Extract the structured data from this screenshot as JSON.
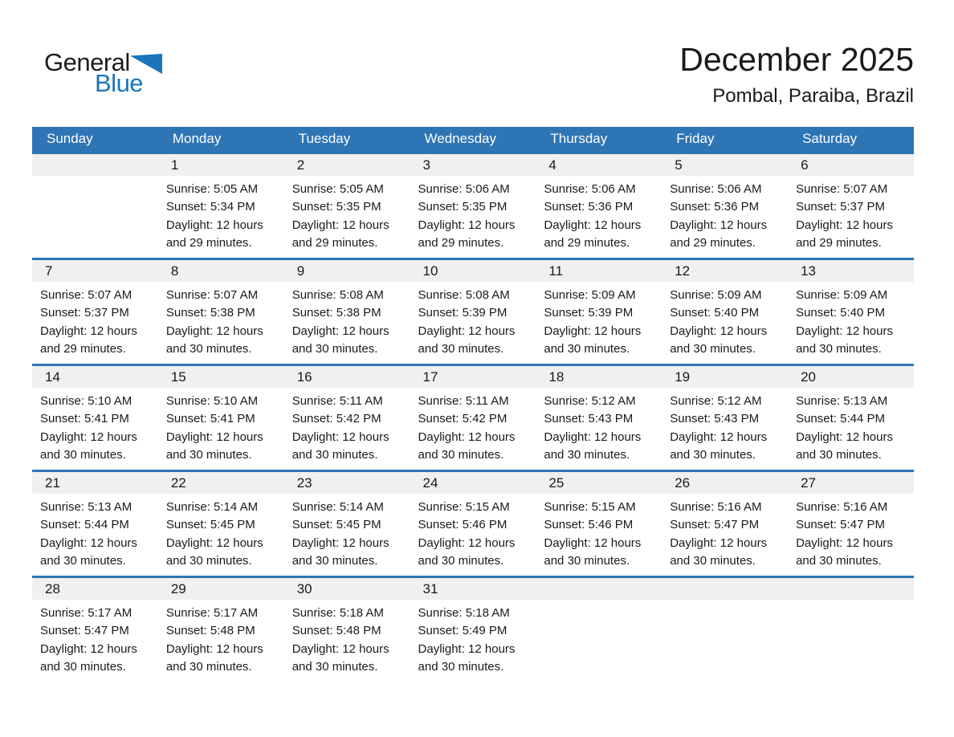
{
  "logo": {
    "general": "General",
    "blue": "Blue"
  },
  "header": {
    "title": "December 2025",
    "subtitle": "Pombal, Paraiba, Brazil"
  },
  "colors": {
    "accent_blue": "#2E75B5",
    "day_number_strip": "#F0F0F0",
    "logo_blue": "#1B75BC",
    "header_text": "#FFFFFF"
  },
  "weekdays": [
    "Sunday",
    "Monday",
    "Tuesday",
    "Wednesday",
    "Thursday",
    "Friday",
    "Saturday"
  ],
  "weeks": [
    [
      null,
      {
        "day": "1",
        "sunrise": "Sunrise: 5:05 AM",
        "sunset": "Sunset: 5:34 PM",
        "daylight": "Daylight: 12 hours and 29 minutes."
      },
      {
        "day": "2",
        "sunrise": "Sunrise: 5:05 AM",
        "sunset": "Sunset: 5:35 PM",
        "daylight": "Daylight: 12 hours and 29 minutes."
      },
      {
        "day": "3",
        "sunrise": "Sunrise: 5:06 AM",
        "sunset": "Sunset: 5:35 PM",
        "daylight": "Daylight: 12 hours and 29 minutes."
      },
      {
        "day": "4",
        "sunrise": "Sunrise: 5:06 AM",
        "sunset": "Sunset: 5:36 PM",
        "daylight": "Daylight: 12 hours and 29 minutes."
      },
      {
        "day": "5",
        "sunrise": "Sunrise: 5:06 AM",
        "sunset": "Sunset: 5:36 PM",
        "daylight": "Daylight: 12 hours and 29 minutes."
      },
      {
        "day": "6",
        "sunrise": "Sunrise: 5:07 AM",
        "sunset": "Sunset: 5:37 PM",
        "daylight": "Daylight: 12 hours and 29 minutes."
      }
    ],
    [
      {
        "day": "7",
        "sunrise": "Sunrise: 5:07 AM",
        "sunset": "Sunset: 5:37 PM",
        "daylight": "Daylight: 12 hours and 29 minutes."
      },
      {
        "day": "8",
        "sunrise": "Sunrise: 5:07 AM",
        "sunset": "Sunset: 5:38 PM",
        "daylight": "Daylight: 12 hours and 30 minutes."
      },
      {
        "day": "9",
        "sunrise": "Sunrise: 5:08 AM",
        "sunset": "Sunset: 5:38 PM",
        "daylight": "Daylight: 12 hours and 30 minutes."
      },
      {
        "day": "10",
        "sunrise": "Sunrise: 5:08 AM",
        "sunset": "Sunset: 5:39 PM",
        "daylight": "Daylight: 12 hours and 30 minutes."
      },
      {
        "day": "11",
        "sunrise": "Sunrise: 5:09 AM",
        "sunset": "Sunset: 5:39 PM",
        "daylight": "Daylight: 12 hours and 30 minutes."
      },
      {
        "day": "12",
        "sunrise": "Sunrise: 5:09 AM",
        "sunset": "Sunset: 5:40 PM",
        "daylight": "Daylight: 12 hours and 30 minutes."
      },
      {
        "day": "13",
        "sunrise": "Sunrise: 5:09 AM",
        "sunset": "Sunset: 5:40 PM",
        "daylight": "Daylight: 12 hours and 30 minutes."
      }
    ],
    [
      {
        "day": "14",
        "sunrise": "Sunrise: 5:10 AM",
        "sunset": "Sunset: 5:41 PM",
        "daylight": "Daylight: 12 hours and 30 minutes."
      },
      {
        "day": "15",
        "sunrise": "Sunrise: 5:10 AM",
        "sunset": "Sunset: 5:41 PM",
        "daylight": "Daylight: 12 hours and 30 minutes."
      },
      {
        "day": "16",
        "sunrise": "Sunrise: 5:11 AM",
        "sunset": "Sunset: 5:42 PM",
        "daylight": "Daylight: 12 hours and 30 minutes."
      },
      {
        "day": "17",
        "sunrise": "Sunrise: 5:11 AM",
        "sunset": "Sunset: 5:42 PM",
        "daylight": "Daylight: 12 hours and 30 minutes."
      },
      {
        "day": "18",
        "sunrise": "Sunrise: 5:12 AM",
        "sunset": "Sunset: 5:43 PM",
        "daylight": "Daylight: 12 hours and 30 minutes."
      },
      {
        "day": "19",
        "sunrise": "Sunrise: 5:12 AM",
        "sunset": "Sunset: 5:43 PM",
        "daylight": "Daylight: 12 hours and 30 minutes."
      },
      {
        "day": "20",
        "sunrise": "Sunrise: 5:13 AM",
        "sunset": "Sunset: 5:44 PM",
        "daylight": "Daylight: 12 hours and 30 minutes."
      }
    ],
    [
      {
        "day": "21",
        "sunrise": "Sunrise: 5:13 AM",
        "sunset": "Sunset: 5:44 PM",
        "daylight": "Daylight: 12 hours and 30 minutes."
      },
      {
        "day": "22",
        "sunrise": "Sunrise: 5:14 AM",
        "sunset": "Sunset: 5:45 PM",
        "daylight": "Daylight: 12 hours and 30 minutes."
      },
      {
        "day": "23",
        "sunrise": "Sunrise: 5:14 AM",
        "sunset": "Sunset: 5:45 PM",
        "daylight": "Daylight: 12 hours and 30 minutes."
      },
      {
        "day": "24",
        "sunrise": "Sunrise: 5:15 AM",
        "sunset": "Sunset: 5:46 PM",
        "daylight": "Daylight: 12 hours and 30 minutes."
      },
      {
        "day": "25",
        "sunrise": "Sunrise: 5:15 AM",
        "sunset": "Sunset: 5:46 PM",
        "daylight": "Daylight: 12 hours and 30 minutes."
      },
      {
        "day": "26",
        "sunrise": "Sunrise: 5:16 AM",
        "sunset": "Sunset: 5:47 PM",
        "daylight": "Daylight: 12 hours and 30 minutes."
      },
      {
        "day": "27",
        "sunrise": "Sunrise: 5:16 AM",
        "sunset": "Sunset: 5:47 PM",
        "daylight": "Daylight: 12 hours and 30 minutes."
      }
    ],
    [
      {
        "day": "28",
        "sunrise": "Sunrise: 5:17 AM",
        "sunset": "Sunset: 5:47 PM",
        "daylight": "Daylight: 12 hours and 30 minutes."
      },
      {
        "day": "29",
        "sunrise": "Sunrise: 5:17 AM",
        "sunset": "Sunset: 5:48 PM",
        "daylight": "Daylight: 12 hours and 30 minutes."
      },
      {
        "day": "30",
        "sunrise": "Sunrise: 5:18 AM",
        "sunset": "Sunset: 5:48 PM",
        "daylight": "Daylight: 12 hours and 30 minutes."
      },
      {
        "day": "31",
        "sunrise": "Sunrise: 5:18 AM",
        "sunset": "Sunset: 5:49 PM",
        "daylight": "Daylight: 12 hours and 30 minutes."
      },
      null,
      null,
      null
    ]
  ]
}
